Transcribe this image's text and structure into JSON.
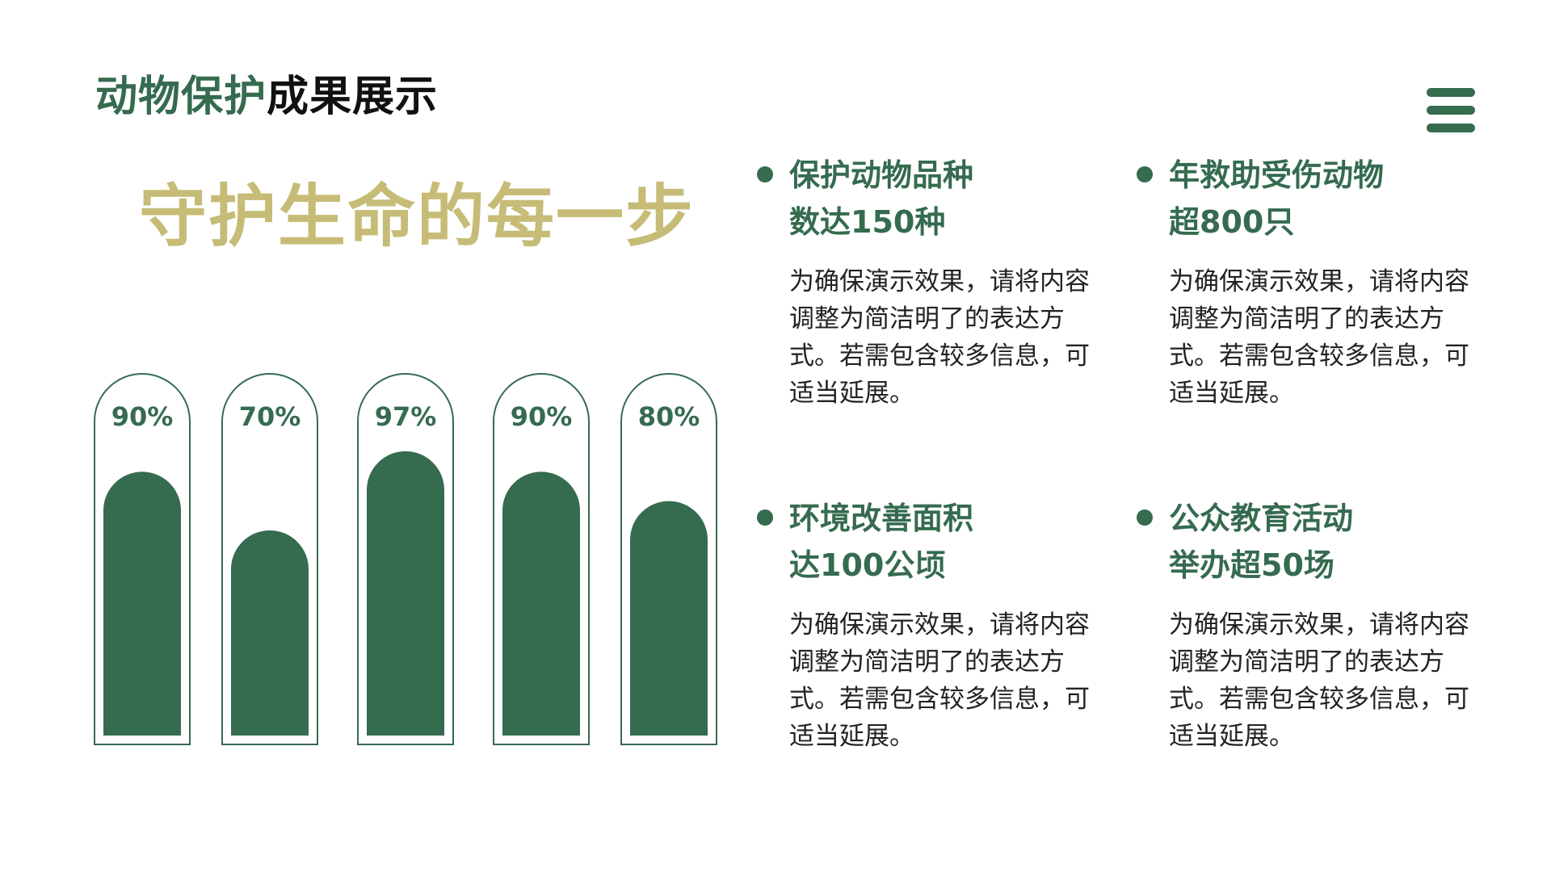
{
  "header": {
    "title_part1": "动物保护",
    "title_part2": "成果展示",
    "menu_icon": "hamburger-menu-icon"
  },
  "slogan": "守护生命的每一步",
  "colors": {
    "primary_green": "#356B4F",
    "gold": "#C6BC77",
    "text_dark": "#111111"
  },
  "chart_data": {
    "type": "bar",
    "categories": [
      "",
      "",
      "",
      "",
      ""
    ],
    "values": [
      90,
      70,
      97,
      90,
      80
    ],
    "labels": [
      "90%",
      "70%",
      "97%",
      "90%",
      "80%"
    ],
    "ylim": [
      0,
      100
    ],
    "title": "",
    "xlabel": "",
    "ylabel": "",
    "grid": false
  },
  "items": [
    {
      "heading_line1": "保护动物品种",
      "heading_line2": "数达150种",
      "desc": "为确保演示效果，请将内容调整为简洁明了的表达方式。若需包含较多信息，可适当延展。"
    },
    {
      "heading_line1": "年救助受伤动物",
      "heading_line2": "超800只",
      "desc": "为确保演示效果，请将内容调整为简洁明了的表达方式。若需包含较多信息，可适当延展。"
    },
    {
      "heading_line1": "环境改善面积",
      "heading_line2": "达100公顷",
      "desc": "为确保演示效果，请将内容调整为简洁明了的表达方式。若需包含较多信息，可适当延展。"
    },
    {
      "heading_line1": "公众教育活动",
      "heading_line2": "举办超50场",
      "desc": "为确保演示效果，请将内容调整为简洁明了的表达方式。若需包含较多信息，可适当延展。"
    }
  ]
}
